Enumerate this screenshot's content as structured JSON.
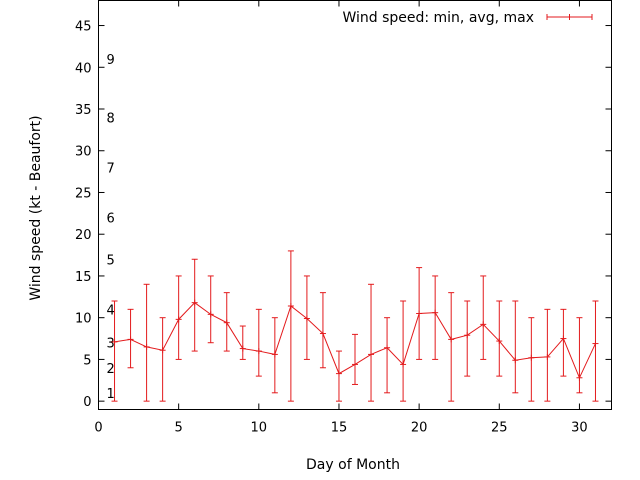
{
  "chart_data": {
    "type": "line",
    "xlabel": "Day of Month",
    "ylabel": "Wind speed (kt - Beaufort)",
    "xlim": [
      0,
      32
    ],
    "ylim": [
      -1,
      48
    ],
    "xticks": [
      0,
      5,
      10,
      15,
      20,
      25,
      30
    ],
    "yticks": [
      0,
      5,
      10,
      15,
      20,
      25,
      30,
      35,
      40,
      45
    ],
    "beaufort_labels": [
      {
        "label": "1",
        "y": 1
      },
      {
        "label": "2",
        "y": 4
      },
      {
        "label": "3",
        "y": 7
      },
      {
        "label": "4",
        "y": 11
      },
      {
        "label": "5",
        "y": 17
      },
      {
        "label": "6",
        "y": 22
      },
      {
        "label": "7",
        "y": 28
      },
      {
        "label": "8",
        "y": 34
      },
      {
        "label": "9",
        "y": 41
      }
    ],
    "grid": false,
    "legend_position": "top-right",
    "series": [
      {
        "name": "Wind speed: min, avg, max",
        "color": "#e31a1c",
        "x": [
          1,
          2,
          3,
          4,
          5,
          6,
          7,
          8,
          9,
          10,
          11,
          12,
          13,
          14,
          15,
          16,
          17,
          18,
          19,
          20,
          21,
          22,
          23,
          24,
          25,
          26,
          27,
          28,
          29,
          30,
          31
        ],
        "avg": [
          7.1,
          7.4,
          6.5,
          6.1,
          9.8,
          11.8,
          10.4,
          9.4,
          6.3,
          6.0,
          5.6,
          11.4,
          9.9,
          8.1,
          3.3,
          4.4,
          5.6,
          6.4,
          4.4,
          10.5,
          10.6,
          7.4,
          7.9,
          9.2,
          7.2,
          4.9,
          5.2,
          5.3,
          7.5,
          2.8,
          6.9
        ],
        "min": [
          0,
          4,
          0,
          0,
          5,
          6,
          7,
          6,
          5,
          3,
          1,
          0,
          5,
          4,
          0,
          2,
          0,
          1,
          0,
          5,
          5,
          0,
          3,
          5,
          3,
          1,
          0,
          0,
          3,
          1,
          0
        ],
        "max": [
          12,
          11,
          14,
          10,
          15,
          17,
          15,
          13,
          9,
          11,
          10,
          18,
          15,
          13,
          6,
          8,
          14,
          10,
          12,
          16,
          15,
          13,
          12,
          15,
          12,
          12,
          10,
          11,
          11,
          10,
          12
        ]
      }
    ]
  }
}
